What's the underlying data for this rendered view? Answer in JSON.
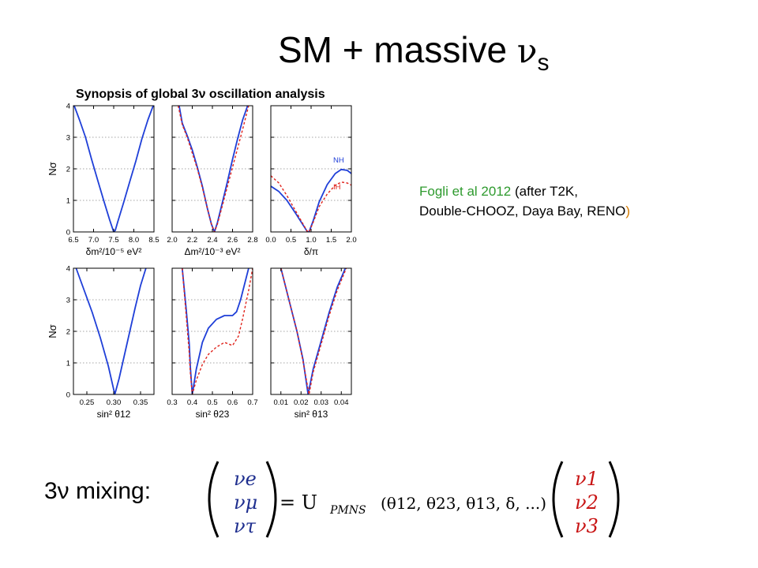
{
  "slide": {
    "title_text": "SM + massive ",
    "title_nu": "ν",
    "title_sub": "s"
  },
  "citation": {
    "part1": "Fogli et al 2012",
    "part2": " (after T2K,",
    "part3": "Double-CHOOZ, Daya Bay, RENO",
    "part4": ")"
  },
  "mixing": {
    "label": "3ν mixing:",
    "lhs": [
      "νe",
      "νμ",
      "ντ"
    ],
    "equals": "= U",
    "subscript": "PMNS",
    "args": "(θ12, θ23, θ13, δ, ...)",
    "rhs": [
      "ν1",
      "ν2",
      "ν3"
    ],
    "colors": {
      "flavor": "#1f2f8f",
      "mass": "#c81414",
      "black": "#000000"
    }
  },
  "chart_data": {
    "title": "Synopsis of global 3ν oscillation analysis",
    "type": "line",
    "colors": {
      "NH": "#1f3fd8",
      "IH": "#e0231c"
    },
    "ylabel": "Nσ",
    "ylim": [
      0,
      4
    ],
    "yticks": [
      0,
      1,
      2,
      3,
      4
    ],
    "panels": [
      {
        "id": "dm2",
        "xlabel": "δm²/10⁻⁵ eV²",
        "xlim": [
          6.5,
          8.5
        ],
        "xticks": [
          6.5,
          7.0,
          7.5,
          8.0,
          8.5
        ],
        "xticklabels": [
          "6.5",
          "7.0",
          "7.5",
          "8.0",
          "8.5"
        ],
        "series": [
          {
            "style": "NH",
            "x": [
              6.52,
              6.65,
              6.8,
              6.95,
              7.1,
              7.25,
              7.4,
              7.5,
              7.54,
              7.6,
              7.75,
              7.9,
              8.05,
              8.2,
              8.35,
              8.48
            ],
            "y": [
              4.0,
              3.55,
              3.0,
              2.3,
              1.65,
              1.0,
              0.38,
              0.0,
              0.05,
              0.32,
              0.95,
              1.6,
              2.25,
              2.95,
              3.55,
              4.0
            ]
          }
        ]
      },
      {
        "id": "Dm2",
        "xlabel": "Δm²/10⁻³ eV²",
        "xlim": [
          2.0,
          2.8
        ],
        "xticks": [
          2.0,
          2.2,
          2.4,
          2.6,
          2.8
        ],
        "xticklabels": [
          "2.0",
          "2.2",
          "2.4",
          "2.6",
          "2.8"
        ],
        "series": [
          {
            "style": "NH",
            "x": [
              2.07,
              2.1,
              2.15,
              2.2,
              2.25,
              2.3,
              2.35,
              2.39,
              2.42,
              2.45,
              2.5,
              2.55,
              2.6,
              2.65,
              2.7,
              2.75
            ],
            "y": [
              4.0,
              3.45,
              3.05,
              2.6,
              2.05,
              1.45,
              0.75,
              0.25,
              0.0,
              0.3,
              0.95,
              1.6,
              2.3,
              2.95,
              3.55,
              4.0
            ]
          },
          {
            "style": "IH",
            "dashed": true,
            "x": [
              2.06,
              2.1,
              2.15,
              2.2,
              2.25,
              2.3,
              2.35,
              2.39,
              2.42,
              2.45,
              2.5,
              2.55,
              2.6,
              2.65,
              2.7,
              2.76
            ],
            "y": [
              4.0,
              3.4,
              3.0,
              2.5,
              2.0,
              1.4,
              0.75,
              0.25,
              0.0,
              0.25,
              0.85,
              1.45,
              2.05,
              2.65,
              3.25,
              4.0
            ]
          }
        ]
      },
      {
        "id": "delta",
        "xlabel": "δ/π",
        "xlim": [
          0.0,
          2.0
        ],
        "xticks": [
          0.0,
          0.5,
          1.0,
          1.5,
          2.0
        ],
        "xticklabels": [
          "0.0",
          "0.5",
          "1.0",
          "1.5",
          "2.0"
        ],
        "annotations": [
          {
            "text": "NH",
            "style": "NH",
            "x": 1.55,
            "y": 2.2
          },
          {
            "text": "IH",
            "style": "IH",
            "x": 1.55,
            "y": 1.35
          }
        ],
        "series": [
          {
            "style": "NH",
            "x": [
              0.0,
              0.2,
              0.4,
              0.6,
              0.8,
              0.9,
              0.95,
              1.05,
              1.2,
              1.4,
              1.6,
              1.75,
              1.9,
              2.0
            ],
            "y": [
              1.45,
              1.28,
              1.0,
              0.62,
              0.22,
              0.02,
              0.0,
              0.35,
              0.95,
              1.5,
              1.85,
              1.98,
              1.95,
              1.85
            ]
          },
          {
            "style": "IH",
            "dashed": true,
            "x": [
              0.0,
              0.2,
              0.4,
              0.6,
              0.8,
              0.9,
              0.95,
              1.05,
              1.2,
              1.4,
              1.6,
              1.75,
              1.9,
              2.0
            ],
            "y": [
              1.78,
              1.55,
              1.15,
              0.7,
              0.25,
              0.03,
              0.0,
              0.3,
              0.8,
              1.2,
              1.48,
              1.58,
              1.55,
              1.48
            ]
          }
        ]
      },
      {
        "id": "s12",
        "xlabel": "sin² θ12",
        "xlim": [
          0.225,
          0.375
        ],
        "xticks": [
          0.25,
          0.3,
          0.35
        ],
        "xticklabels": [
          "0.25",
          "0.30",
          "0.35"
        ],
        "series": [
          {
            "style": "NH",
            "x": [
              0.23,
              0.245,
              0.26,
              0.275,
              0.29,
              0.302,
              0.31,
              0.32,
              0.33,
              0.34,
              0.35,
              0.36
            ],
            "y": [
              4.0,
              3.3,
              2.6,
              1.8,
              0.9,
              0.0,
              0.5,
              1.25,
              2.0,
              2.75,
              3.45,
              4.0
            ]
          }
        ]
      },
      {
        "id": "s23",
        "xlabel": "sin² θ23",
        "xlim": [
          0.3,
          0.7
        ],
        "xticks": [
          0.3,
          0.4,
          0.5,
          0.6,
          0.7
        ],
        "xticklabels": [
          "0.3",
          "0.4",
          "0.5",
          "0.6",
          "0.7"
        ],
        "series": [
          {
            "style": "NH",
            "x": [
              0.35,
              0.37,
              0.385,
              0.39,
              0.4,
              0.42,
              0.45,
              0.48,
              0.52,
              0.56,
              0.6,
              0.62,
              0.64,
              0.66,
              0.68
            ],
            "y": [
              4.0,
              2.7,
              1.6,
              0.9,
              0.0,
              0.8,
              1.65,
              2.1,
              2.38,
              2.5,
              2.5,
              2.62,
              3.0,
              3.5,
              4.0
            ]
          },
          {
            "style": "IH",
            "dashed": true,
            "x": [
              0.35,
              0.37,
              0.385,
              0.39,
              0.4,
              0.42,
              0.45,
              0.48,
              0.52,
              0.56,
              0.6,
              0.63,
              0.65,
              0.68,
              0.7
            ],
            "y": [
              4.0,
              2.5,
              1.3,
              0.7,
              0.0,
              0.45,
              0.95,
              1.27,
              1.5,
              1.65,
              1.55,
              1.85,
              2.4,
              3.3,
              4.0
            ]
          }
        ]
      },
      {
        "id": "s13",
        "xlabel": "sin² θ13",
        "xlim": [
          0.005,
          0.045
        ],
        "xticks": [
          0.01,
          0.02,
          0.03,
          0.04
        ],
        "xticklabels": [
          "0.01",
          "0.02",
          "0.03",
          "0.04"
        ],
        "series": [
          {
            "style": "NH",
            "x": [
              0.01,
              0.014,
              0.018,
              0.021,
              0.0235,
              0.026,
              0.03,
              0.034,
              0.038,
              0.042
            ],
            "y": [
              4.0,
              3.0,
              2.0,
              1.1,
              0.0,
              0.8,
              1.7,
              2.6,
              3.4,
              4.0
            ]
          },
          {
            "style": "IH",
            "dashed": true,
            "x": [
              0.01,
              0.014,
              0.018,
              0.021,
              0.024,
              0.026,
              0.03,
              0.034,
              0.038,
              0.0425
            ],
            "y": [
              4.0,
              3.0,
              2.0,
              1.05,
              0.0,
              0.7,
              1.6,
              2.5,
              3.3,
              4.0
            ]
          }
        ]
      }
    ]
  }
}
